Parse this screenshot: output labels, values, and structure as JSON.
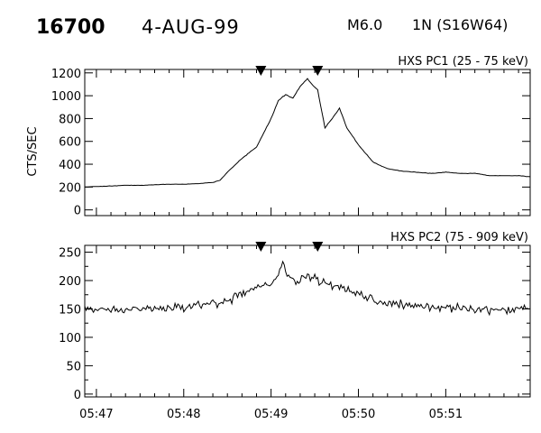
{
  "header": {
    "event_number": "16700",
    "date": "4-AUG-99",
    "flare_class": "M6.0",
    "flare_location": "1N (S16W64)"
  },
  "chart_data": [
    {
      "type": "line",
      "title": "HXS PC1 (25 - 75 keV)",
      "ylabel": "CTS/SEC",
      "xlabel": "",
      "x_ticks": [
        "05:47",
        "05:48",
        "05:49",
        "05:50",
        "05:51"
      ],
      "x_tick_labels_shown": false,
      "xlim": [
        "05:46:52",
        "05:51:58"
      ],
      "ylim": [
        -50,
        1230
      ],
      "y_ticks": [
        0,
        200,
        400,
        600,
        800,
        1000,
        1200
      ],
      "markers": [
        "05:48:53",
        "05:49:32"
      ],
      "series": [
        {
          "x": [
            "05:46:52",
            "05:47:00",
            "05:47:10",
            "05:47:20",
            "05:47:30",
            "05:47:40",
            "05:47:50",
            "05:48:00",
            "05:48:10",
            "05:48:20",
            "05:48:25",
            "05:48:30",
            "05:48:40",
            "05:48:50",
            "05:49:00",
            "05:49:05",
            "05:49:10",
            "05:49:15",
            "05:49:20",
            "05:49:25",
            "05:49:28",
            "05:49:32",
            "05:49:37",
            "05:49:42",
            "05:49:47",
            "05:49:52",
            "05:50:00",
            "05:50:10",
            "05:50:20",
            "05:50:30",
            "05:50:40",
            "05:50:50",
            "05:51:00",
            "05:51:10",
            "05:51:20",
            "05:51:30",
            "05:51:40",
            "05:51:50",
            "05:51:58"
          ],
          "values": [
            200,
            205,
            210,
            215,
            215,
            220,
            225,
            225,
            230,
            240,
            260,
            330,
            450,
            550,
            800,
            960,
            1010,
            980,
            1080,
            1150,
            1100,
            1050,
            720,
            800,
            890,
            720,
            570,
            420,
            360,
            340,
            330,
            320,
            330,
            320,
            320,
            300,
            300,
            300,
            290
          ]
        }
      ]
    },
    {
      "type": "line",
      "title": "HXS PC2 (75 - 909 keV)",
      "ylabel": "",
      "xlabel": "",
      "x_ticks": [
        "05:47",
        "05:48",
        "05:49",
        "05:50",
        "05:51"
      ],
      "xlim": [
        "05:46:52",
        "05:51:58"
      ],
      "ylim": [
        -5,
        262
      ],
      "y_ticks": [
        0,
        50,
        100,
        150,
        200,
        250
      ],
      "y_minor_ticks": [
        25,
        75,
        125,
        175,
        225
      ],
      "markers": [
        "05:48:53",
        "05:49:32"
      ],
      "series": [
        {
          "x": [
            "05:46:52",
            "05:47:10",
            "05:47:30",
            "05:47:50",
            "05:48:10",
            "05:48:20",
            "05:48:30",
            "05:48:40",
            "05:48:50",
            "05:48:55",
            "05:49:00",
            "05:49:05",
            "05:49:08",
            "05:49:12",
            "05:49:18",
            "05:49:25",
            "05:49:35",
            "05:49:45",
            "05:49:55",
            "05:50:10",
            "05:50:20",
            "05:50:40",
            "05:51:00",
            "05:51:20",
            "05:51:40",
            "05:51:58"
          ],
          "values": [
            150,
            148,
            150,
            152,
            155,
            160,
            165,
            175,
            185,
            195,
            190,
            210,
            232,
            205,
            195,
            210,
            195,
            190,
            180,
            165,
            160,
            155,
            152,
            150,
            148,
            150
          ]
        }
      ]
    }
  ]
}
